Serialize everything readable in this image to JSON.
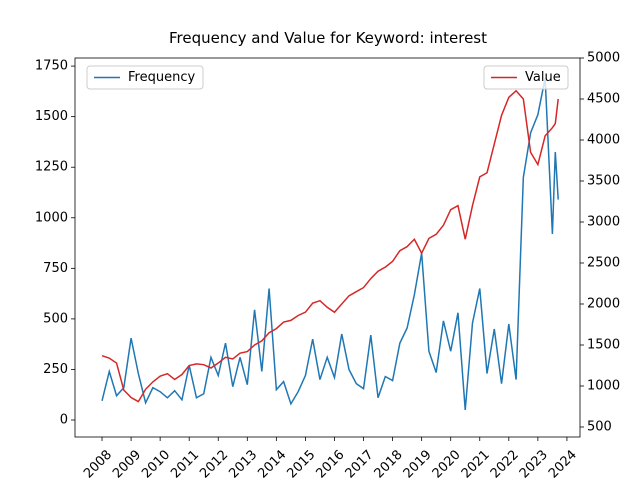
{
  "chart_data": {
    "type": "line",
    "title": "Frequency and Value for Keyword: interest",
    "x": [
      2008.0,
      2008.25,
      2008.5,
      2008.75,
      2009.0,
      2009.25,
      2009.5,
      2009.75,
      2010.0,
      2010.25,
      2010.5,
      2010.75,
      2011.0,
      2011.25,
      2011.5,
      2011.75,
      2012.0,
      2012.25,
      2012.5,
      2012.75,
      2013.0,
      2013.25,
      2013.5,
      2013.75,
      2014.0,
      2014.25,
      2014.5,
      2014.75,
      2015.0,
      2015.25,
      2015.5,
      2015.75,
      2016.0,
      2016.25,
      2016.5,
      2016.75,
      2017.0,
      2017.25,
      2017.5,
      2017.75,
      2018.0,
      2018.25,
      2018.5,
      2018.75,
      2019.0,
      2019.25,
      2019.5,
      2019.75,
      2020.0,
      2020.25,
      2020.5,
      2020.75,
      2021.0,
      2021.25,
      2021.5,
      2021.75,
      2022.0,
      2022.25,
      2022.5,
      2022.75,
      2023.0,
      2023.25,
      2023.5,
      2023.6,
      2023.7
    ],
    "series": [
      {
        "name": "Frequency",
        "color": "#1f77b4",
        "axis": "y",
        "values": [
          95,
          240,
          120,
          160,
          405,
          230,
          85,
          160,
          140,
          110,
          145,
          100,
          270,
          110,
          130,
          310,
          220,
          380,
          165,
          310,
          175,
          545,
          240,
          650,
          150,
          190,
          80,
          140,
          220,
          400,
          200,
          310,
          210,
          425,
          250,
          180,
          155,
          420,
          110,
          215,
          195,
          380,
          455,
          620,
          825,
          340,
          235,
          490,
          340,
          530,
          50,
          480,
          650,
          230,
          450,
          180,
          475,
          200,
          1200,
          1420,
          1510,
          1690,
          920,
          1325,
          1090
        ]
      },
      {
        "name": "Value",
        "color": "#d62728",
        "axis": "y2",
        "values": [
          1370,
          1340,
          1280,
          950,
          860,
          810,
          960,
          1050,
          1120,
          1150,
          1080,
          1140,
          1250,
          1270,
          1260,
          1220,
          1280,
          1350,
          1330,
          1400,
          1420,
          1500,
          1550,
          1650,
          1700,
          1780,
          1800,
          1860,
          1900,
          2010,
          2040,
          1960,
          1900,
          2000,
          2100,
          2150,
          2200,
          2310,
          2400,
          2450,
          2520,
          2650,
          2700,
          2790,
          2620,
          2800,
          2850,
          2960,
          3150,
          3200,
          2790,
          3200,
          3550,
          3600,
          3950,
          4300,
          4520,
          4600,
          4500,
          3850,
          3700,
          4050,
          4150,
          4200,
          4500
        ]
      }
    ],
    "xlim": [
      2007.07,
      2024.45
    ],
    "xticks": [
      2008,
      2009,
      2010,
      2011,
      2012,
      2013,
      2014,
      2015,
      2016,
      2017,
      2018,
      2019,
      2020,
      2021,
      2022,
      2023,
      2024
    ],
    "ylim": [
      -84,
      1790
    ],
    "yticks": [
      0,
      250,
      500,
      750,
      1000,
      1250,
      1500,
      1750
    ],
    "y2lim": [
      378,
      5000
    ],
    "y2ticks": [
      500,
      1000,
      1500,
      2000,
      2500,
      3000,
      3500,
      4000,
      4500,
      5000
    ],
    "legend": [
      "upper left",
      "upper right"
    ]
  }
}
